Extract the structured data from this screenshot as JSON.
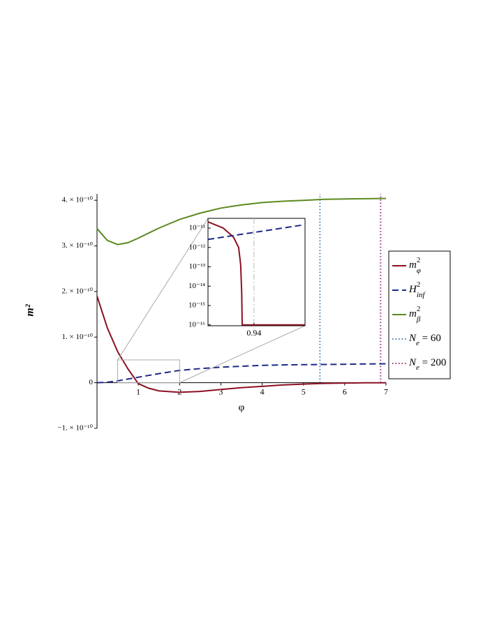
{
  "chart_data": {
    "type": "line",
    "xlabel": "φ",
    "ylabel": "m²",
    "xlim": [
      0,
      7
    ],
    "ylim": [
      -1e-10,
      4.14e-10
    ],
    "xticks": [
      1,
      2,
      3,
      4,
      5,
      6,
      7
    ],
    "yticks": [
      {
        "value": -1e-10,
        "label": "−1. × 10⁻¹⁰"
      },
      0,
      {
        "value": 1e-10,
        "label": "1. × 10⁻¹⁰"
      },
      {
        "value": 2e-10,
        "label": "2. × 10⁻¹⁰"
      },
      {
        "value": 3e-10,
        "label": "3. × 10⁻¹⁰"
      },
      {
        "value": 4e-10,
        "label": "4. × 10⁻¹⁰"
      }
    ],
    "legend": "right",
    "x": [
      0,
      0.25,
      0.5,
      0.75,
      1,
      1.25,
      1.5,
      2,
      2.5,
      3,
      3.5,
      4,
      4.5,
      5,
      5.5,
      6,
      6.5,
      7
    ],
    "series": [
      {
        "name": "m",
        "sup": "2",
        "sub": "φ",
        "color": "#8b1022",
        "style": "solid",
        "values": [
          1.9e-10,
          1.2e-10,
          6.8e-11,
          3e-11,
          -2e-12,
          -1.2e-11,
          -1.8e-11,
          -2.1e-11,
          -1.9e-11,
          -1.5e-11,
          -1.1e-11,
          -8e-12,
          -5e-12,
          -3e-12,
          -1.5e-12,
          -7e-13,
          -3e-13,
          -1e-13
        ]
      },
      {
        "name": "H",
        "sup": "2",
        "sub": "inf",
        "color": "#1c2a86",
        "style": "dashed",
        "values": [
          0,
          1e-12,
          4e-12,
          8e-12,
          1.2e-11,
          1.6e-11,
          2e-11,
          2.7e-11,
          3.1e-11,
          3.4e-11,
          3.6e-11,
          3.8e-11,
          3.9e-11,
          3.95e-11,
          4e-11,
          4.05e-11,
          4.1e-11,
          4.15e-11
        ]
      },
      {
        "name": "m",
        "sup": "2",
        "sub": "β",
        "color": "#5b8a1e",
        "style": "solid",
        "values": [
          3.38e-10,
          3.12e-10,
          3.03e-10,
          3.07e-10,
          3.17e-10,
          3.28e-10,
          3.39e-10,
          3.58e-10,
          3.72e-10,
          3.83e-10,
          3.9e-10,
          3.95e-10,
          3.98e-10,
          4e-10,
          4.02e-10,
          4.03e-10,
          4.035e-10,
          4.04e-10
        ]
      }
    ],
    "vlines": [
      {
        "name": "N",
        "sub": "e",
        "tail": " = 60",
        "color": "#4a7aa8",
        "style": "dotted",
        "x": 5.4
      },
      {
        "name": "N",
        "sub": "e",
        "tail": " = 200",
        "color": "#9c2a7d",
        "style": "dotted",
        "x": 6.87
      }
    ],
    "inset": {
      "type": "line",
      "log_y": true,
      "xlim": [
        0.895,
        0.99
      ],
      "ylim": [
        9e-17,
        3.2e-11
      ],
      "xticks": [
        0.94
      ],
      "yticks": [
        {
          "value": 1e-11,
          "label": "10⁻¹¹"
        },
        {
          "value": 1e-12,
          "label": "10⁻¹²"
        },
        {
          "value": 1e-13,
          "label": "10⁻¹³"
        },
        {
          "value": 1e-14,
          "label": "10⁻¹⁴"
        },
        {
          "value": 1e-15,
          "label": "10⁻¹⁵"
        },
        {
          "value": 1e-16,
          "label": "10⁻¹⁶"
        }
      ],
      "ref_x": 0.94,
      "zoom_xlim": [
        0.5,
        2
      ],
      "zoom_ylim": [
        0,
        5e-11
      ],
      "series": [
        {
          "color": "#8b1022",
          "style": "solid",
          "x": [
            0.895,
            0.91,
            0.92,
            0.925,
            0.927,
            0.928,
            0.9285,
            0.95,
            0.99
          ],
          "values": [
            2.1e-11,
            1e-11,
            3.4e-12,
            1e-12,
            1.3e-13,
            4.5e-15,
            1e-16,
            1e-16,
            1e-16
          ]
        },
        {
          "color": "#1c2a86",
          "style": "dashed",
          "x": [
            0.895,
            0.94,
            0.99
          ],
          "values": [
            2.6e-12,
            6e-12,
            1.5e-11
          ]
        }
      ]
    }
  }
}
